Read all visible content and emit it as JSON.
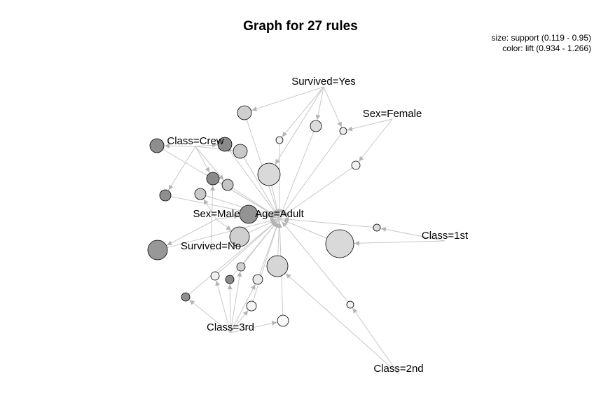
{
  "title": "Graph for 27 rules",
  "legend": {
    "size": "size: support (0.119 - 0.95)",
    "color": "color: lift (0.934 - 1.266)"
  },
  "colors": {
    "edge": "#c8c8c8",
    "arrow": "#b4b4b4",
    "node_stroke": "#000000"
  },
  "items": [
    "Survived=Yes",
    "Sex=Female",
    "Class=Crew",
    "Sex=Male",
    "Age=Adult",
    "Survived=No",
    "Class=1st",
    "Class=3rd",
    "Class=2nd"
  ]
}
